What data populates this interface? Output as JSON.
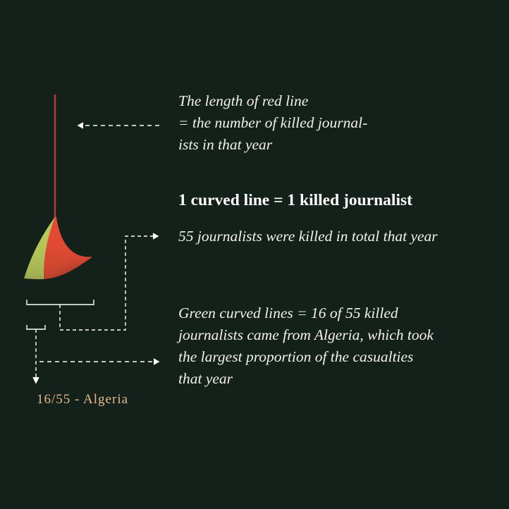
{
  "annotations": {
    "red_line_note": [
      "The length of red line",
      "= the number of killed journal-",
      "ists in that year"
    ],
    "curve_rule": "1 curved line = 1 killed journalist",
    "total_note": "55 journalists were killed in total that year",
    "green_note": [
      "Green curved lines = 16 of 55 killed",
      "journalists came from Algeria, which took",
      "the largest proportion of the casualties",
      "that year"
    ],
    "country_label": "16/55 - Algeria"
  },
  "glyph": {
    "total_killed": 55,
    "green_count": 16,
    "red_count": 39,
    "country": "Algeria"
  },
  "colors": {
    "background": "#13211a",
    "red": "#e24a33",
    "green": "#b9c85a",
    "dashed": "#ffffff",
    "label": "#e7b98a"
  }
}
